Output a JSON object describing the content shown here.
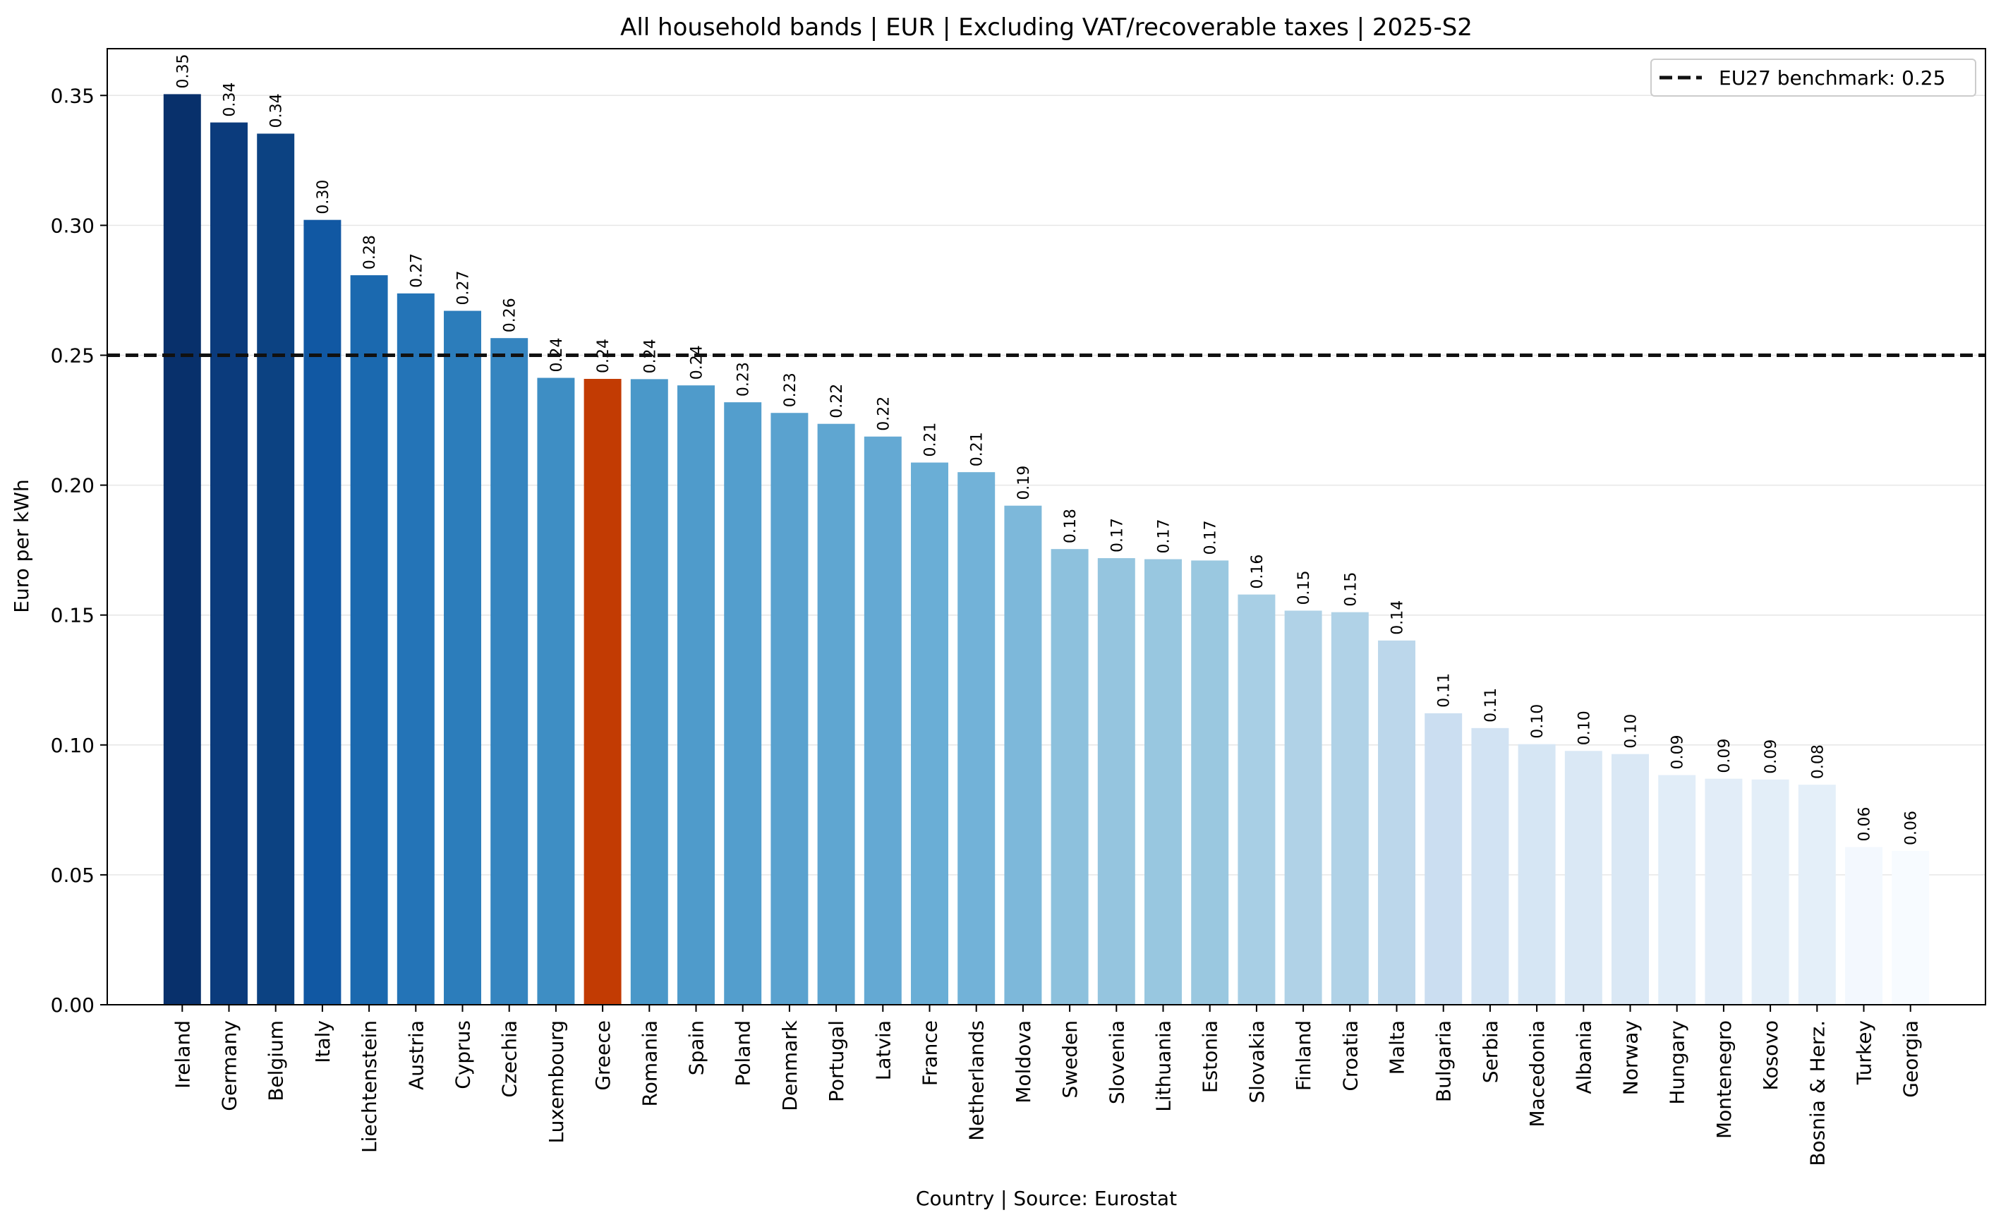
{
  "chart_data": {
    "type": "bar",
    "title": "All household bands | EUR | Excluding VAT/recoverable taxes | 2025-S2",
    "xlabel": "Country | Source: Eurostat",
    "ylabel": "Euro per kWh",
    "ylim": [
      0,
      0.368
    ],
    "yticks": [
      "0.00",
      "0.05",
      "0.10",
      "0.15",
      "0.20",
      "0.25",
      "0.30",
      "0.35"
    ],
    "grid": "horizontal",
    "legend_position": "top-right",
    "benchmark": {
      "label": "EU27 benchmark: 0.25",
      "value": 0.25,
      "style": "dashed",
      "color": "#111111"
    },
    "highlight_color": "#c23b03",
    "highlight_category": "Greece",
    "categories": [
      "Ireland",
      "Germany",
      "Belgium",
      "Italy",
      "Liechtenstein",
      "Austria",
      "Cyprus",
      "Czechia",
      "Luxembourg",
      "Greece",
      "Romania",
      "Spain",
      "Poland",
      "Denmark",
      "Portugal",
      "Latvia",
      "France",
      "Netherlands",
      "Moldova",
      "Sweden",
      "Slovenia",
      "Lithuania",
      "Estonia",
      "Slovakia",
      "Finland",
      "Croatia",
      "Malta",
      "Bulgaria",
      "Serbia",
      "Macedonia",
      "Albania",
      "Norway",
      "Hungary",
      "Montenegro",
      "Kosovo",
      "Bosnia & Herz.",
      "Turkey",
      "Georgia"
    ],
    "values": [
      0.3505,
      0.3396,
      0.3353,
      0.3021,
      0.2808,
      0.2738,
      0.2671,
      0.2566,
      0.2413,
      0.2409,
      0.2408,
      0.2384,
      0.2319,
      0.2278,
      0.2236,
      0.2187,
      0.2087,
      0.205,
      0.1921,
      0.1754,
      0.1719,
      0.1715,
      0.171,
      0.1579,
      0.1517,
      0.1511,
      0.1402,
      0.1122,
      0.1065,
      0.1003,
      0.0977,
      0.0965,
      0.0884,
      0.087,
      0.0867,
      0.0847,
      0.0607,
      0.0592
    ],
    "value_labels": [
      "0.35",
      "0.34",
      "0.34",
      "0.30",
      "0.28",
      "0.27",
      "0.27",
      "0.26",
      "0.24",
      "0.24",
      "0.24",
      "0.24",
      "0.23",
      "0.23",
      "0.22",
      "0.22",
      "0.21",
      "0.21",
      "0.19",
      "0.18",
      "0.17",
      "0.17",
      "0.17",
      "0.16",
      "0.15",
      "0.15",
      "0.14",
      "0.11",
      "0.11",
      "0.10",
      "0.10",
      "0.10",
      "0.09",
      "0.09",
      "0.09",
      "0.08",
      "0.06",
      "0.06"
    ],
    "bar_colors": [
      "#08306b",
      "#0b3b7c",
      "#0c4282",
      "#1158a3",
      "#1b69af",
      "#2474b7",
      "#2c7dbb",
      "#3585c0",
      "#3e8ec4",
      "#c23b03",
      "#4a98c9",
      "#4f9bcb",
      "#539ecd",
      "#5aa2cf",
      "#5fa6d1",
      "#64a9d3",
      "#6aaed6",
      "#72b2d8",
      "#7db8da",
      "#8dc1dd",
      "#95c5df",
      "#98c7e0",
      "#9ac8e0",
      "#a8cfe5",
      "#b0d2e7",
      "#b0d2e7",
      "#bcd7eb",
      "#cbdef1",
      "#d2e3f3",
      "#d6e6f4",
      "#dae8f5",
      "#dae8f5",
      "#e1edf8",
      "#e2edf8",
      "#e3eef8",
      "#e4eff9",
      "#f3f8fe",
      "#f7fbff"
    ]
  }
}
